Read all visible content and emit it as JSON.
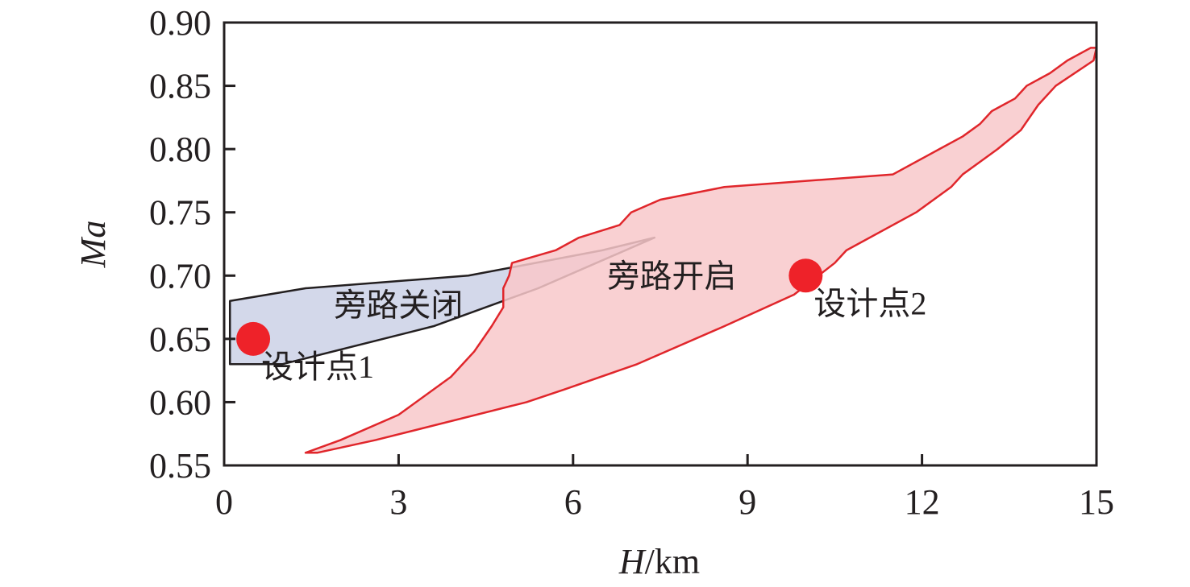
{
  "chart_data": {
    "type": "area",
    "title": "",
    "xlabel_italic": "H",
    "xlabel_unit": "/km",
    "ylabel": "Ma",
    "xlim": [
      0,
      15
    ],
    "ylim": [
      0.55,
      0.9
    ],
    "xticks": [
      0,
      3,
      6,
      9,
      12,
      15
    ],
    "xtick_labels": [
      "0",
      "3",
      "6",
      "9",
      "12",
      "15"
    ],
    "yticks": [
      0.55,
      0.6,
      0.65,
      0.7,
      0.75,
      0.8,
      0.85,
      0.9
    ],
    "ytick_labels": [
      "0.55",
      "0.60",
      "0.65",
      "0.70",
      "0.75",
      "0.80",
      "0.85",
      "0.90"
    ],
    "grid": false,
    "series": [
      {
        "name": "旁路关闭",
        "fill": "#d3d8ea",
        "stroke": "#231f20",
        "label_at": [
          3.0,
          0.677
        ],
        "polygon": [
          [
            0.1,
            0.63
          ],
          [
            0.1,
            0.68
          ],
          [
            1.4,
            0.69
          ],
          [
            4.2,
            0.7
          ],
          [
            6.5,
            0.72
          ],
          [
            7.4,
            0.73
          ],
          [
            6.4,
            0.71
          ],
          [
            5.4,
            0.69
          ],
          [
            3.6,
            0.66
          ],
          [
            1.0,
            0.63
          ]
        ]
      },
      {
        "name": "旁路开启",
        "fill": "#f8c8ca",
        "stroke": "#e0262b",
        "label_at": [
          7.7,
          0.7
        ],
        "polygon": [
          [
            1.4,
            0.56
          ],
          [
            2.0,
            0.57
          ],
          [
            3.0,
            0.59
          ],
          [
            3.9,
            0.62
          ],
          [
            4.3,
            0.64
          ],
          [
            4.45,
            0.65
          ],
          [
            4.6,
            0.66
          ],
          [
            4.8,
            0.675
          ],
          [
            4.8,
            0.69
          ],
          [
            4.9,
            0.7
          ],
          [
            4.95,
            0.71
          ],
          [
            5.7,
            0.72
          ],
          [
            6.1,
            0.73
          ],
          [
            6.8,
            0.74
          ],
          [
            7.0,
            0.75
          ],
          [
            7.5,
            0.76
          ],
          [
            8.6,
            0.77
          ],
          [
            11.5,
            0.78
          ],
          [
            12.3,
            0.8
          ],
          [
            12.7,
            0.81
          ],
          [
            13.0,
            0.82
          ],
          [
            13.2,
            0.83
          ],
          [
            13.6,
            0.84
          ],
          [
            13.8,
            0.85
          ],
          [
            14.2,
            0.86
          ],
          [
            14.5,
            0.87
          ],
          [
            14.9,
            0.88
          ],
          [
            15.0,
            0.88
          ],
          [
            14.95,
            0.87
          ],
          [
            14.3,
            0.85
          ],
          [
            14.0,
            0.835
          ],
          [
            13.7,
            0.815
          ],
          [
            13.3,
            0.8
          ],
          [
            13.0,
            0.79
          ],
          [
            12.7,
            0.78
          ],
          [
            12.5,
            0.77
          ],
          [
            11.9,
            0.75
          ],
          [
            10.7,
            0.72
          ],
          [
            10.5,
            0.71
          ],
          [
            9.8,
            0.685
          ],
          [
            8.6,
            0.66
          ],
          [
            7.1,
            0.63
          ],
          [
            5.85,
            0.61
          ],
          [
            5.2,
            0.6
          ],
          [
            2.6,
            0.57
          ],
          [
            1.6,
            0.56
          ]
        ]
      }
    ],
    "points": [
      {
        "name": "设计点1",
        "x": 0.5,
        "y": 0.65,
        "color": "#ee2229"
      },
      {
        "name": "设计点2",
        "x": 10.0,
        "y": 0.7,
        "color": "#ee2229"
      }
    ]
  }
}
